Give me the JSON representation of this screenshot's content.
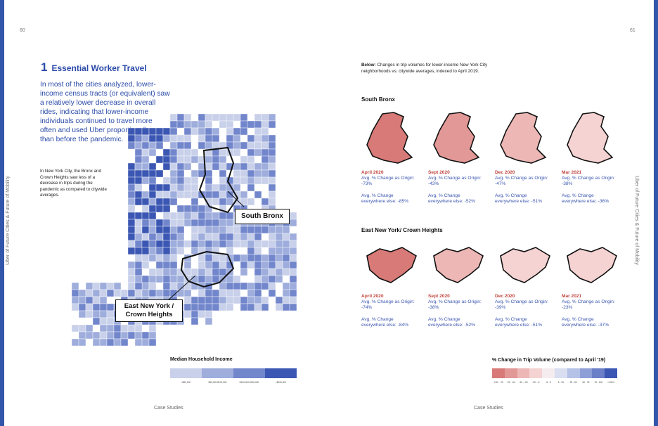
{
  "pages": {
    "left_number": "60",
    "right_number": "61"
  },
  "side_text": {
    "left": "Uber of Future Cities & Future of Mobility",
    "right": "Uber of Future Cities & Future of Mobility"
  },
  "heading": {
    "number": "1",
    "title": "Essential Worker Travel"
  },
  "lead": "In most of the cities analyzed, lower-income census tracts (or equivalent) saw a relatively lower decrease in overall rides, indicating that lower-income individuals continued to travel more often and used Uber proportionally more than before the pandemic.",
  "small_text": "In New York City, the Bronx and Crown Heights saw less of a decrease in trips during the pandemic as compared to citywide averages.",
  "callouts": {
    "south_bronx": "South Bronx",
    "eny_line1": "East New York /",
    "eny_line2": "Crown Heights"
  },
  "income_legend": {
    "title": "Median Household Income",
    "labels": [
      "<$50,000",
      "$50,000-$100,000",
      "$100,000-$150,000",
      ">$150,000"
    ],
    "colors": [
      "#c8d0ea",
      "#9eaddc",
      "#7286cc",
      "#3b57b3"
    ]
  },
  "intro": {
    "bold": "Below:",
    "text": " Changes in trip volumes for lower-income New York City neighborhoods vs. citywide averages, indexed to April 2019."
  },
  "sections": [
    {
      "title": "South Bronx",
      "panels": [
        {
          "month": "April 2020",
          "origin_label": "Avg. % Change as Origin:",
          "origin": "-73%",
          "else_label": "Avg. % Change",
          "else": "everywhere else: -85%"
        },
        {
          "month": "Sept 2020",
          "origin_label": "Avg. % Change as Origin:",
          "origin": "-43%",
          "else_label": "Avg. % Change",
          "else": "everywhere else: -52%"
        },
        {
          "month": "Dec 2020",
          "origin_label": "Avg. % Change as Origin:",
          "origin": "-47%",
          "else_label": "Avg. % Change",
          "else": "everywhere else: -51%"
        },
        {
          "month": "Mar 2021",
          "origin_label": "Avg. % Change as Origin:",
          "origin": "-38%",
          "else_label": "Avg. % Change",
          "else": "everywhere else: -36%"
        }
      ]
    },
    {
      "title": "East New York/ Crown Heights",
      "panels": [
        {
          "month": "April 2020",
          "origin_label": "Avg. % Change as Origin:",
          "origin": "-74%",
          "else_label": "Avg. % Change",
          "else": "everywhere else: -84%"
        },
        {
          "month": "Sept 2020",
          "origin_label": "Avg. % Change as Origin:",
          "origin": "-38%",
          "else_label": "Avg. % Change",
          "else": "everywhere else: -52%"
        },
        {
          "month": "Dec 2020",
          "origin_label": "Avg. % Change as Origin:",
          "origin": "-39%",
          "else_label": "Avg. % Change",
          "else": "everywhere else: -51%"
        },
        {
          "month": "Mar 2021",
          "origin_label": "Avg. % Change as Origin:",
          "origin": "-23%",
          "else_label": "Avg. % Change",
          "else": "everywhere else: -37%"
        }
      ]
    }
  ],
  "trip_legend": {
    "title": "% Change in Trip Volume (compared to April '19)",
    "labels": [
      "-100 - -75",
      "-75 - -50",
      "-50 - -25",
      "-25 - -5",
      "-5 - 5",
      "5 - 25",
      "25 - 50",
      "50 - 75",
      "75 - 100",
      ">100%"
    ],
    "colors": [
      "#d77a78",
      "#e29896",
      "#ecb7b5",
      "#f4d3d2",
      "#f5ecef",
      "#d9def1",
      "#b5c1e6",
      "#8e9fd7",
      "#6b7fc8",
      "#3b57b3"
    ]
  },
  "footer": {
    "left": "Case Studies",
    "right": "Case Studies"
  }
}
